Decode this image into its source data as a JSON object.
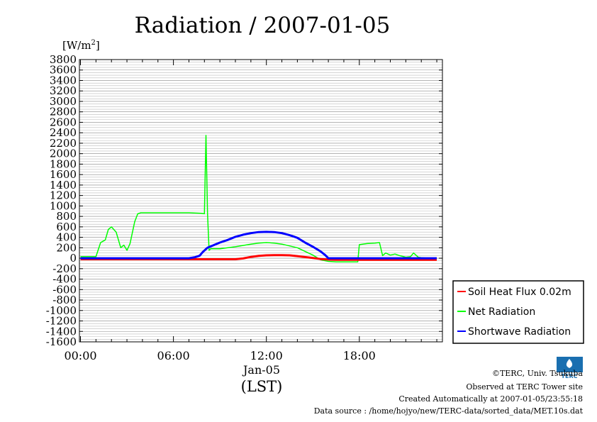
{
  "chart_data": {
    "type": "line",
    "title": "Radiation / 2007-01-05",
    "unit": "[W/m2]",
    "ylim": [
      -1600,
      3800
    ],
    "yticks": [
      3800,
      3600,
      3400,
      3200,
      3000,
      2800,
      2600,
      2400,
      2200,
      2000,
      1800,
      1600,
      1400,
      1200,
      1000,
      800,
      600,
      400,
      200,
      0,
      -200,
      -400,
      -600,
      -800,
      -1000,
      -1200,
      -1400,
      -1600
    ],
    "xlim": [
      0,
      23
    ],
    "x_tick_labels": [
      "00:00",
      "06:00",
      "12:00",
      "18:00"
    ],
    "date_label": "Jan-05",
    "xlabel": "(LST)",
    "grid": true,
    "legend_position": "right",
    "series": [
      {
        "name": "Soil Heat Flux 0.02m",
        "color": "#ff0000",
        "x": [
          0,
          2,
          4,
          6,
          8,
          10,
          10.5,
          11,
          11.5,
          12,
          12.5,
          13,
          13.5,
          14,
          15,
          15.5,
          16,
          16.5,
          17,
          18,
          20,
          22,
          23
        ],
        "y": [
          -20,
          -20,
          -20,
          -20,
          -20,
          -20,
          -5,
          25,
          45,
          55,
          60,
          60,
          55,
          40,
          5,
          -15,
          -25,
          -30,
          -30,
          -30,
          -30,
          -30,
          -30
        ]
      },
      {
        "name": "Net Radiation",
        "color": "#00ff00",
        "x": [
          0,
          1,
          1.3,
          1.6,
          1.8,
          2.0,
          2.3,
          2.6,
          2.8,
          3.0,
          3.2,
          3.5,
          3.7,
          3.9,
          4.2,
          5,
          6,
          7,
          7.8,
          8.0,
          8.1,
          8.15,
          8.2,
          8.3,
          8.4,
          8.6,
          9,
          10,
          11,
          11.5,
          12,
          12.5,
          13,
          14,
          15,
          15.5,
          16,
          16.5,
          17,
          17.5,
          17.9,
          18,
          18.5,
          19,
          19.3,
          19.5,
          19.7,
          20,
          20.3,
          20.6,
          21,
          21.3,
          21.5,
          21.8,
          22,
          22.3,
          22.5,
          22.7,
          23
        ],
        "y": [
          30,
          30,
          300,
          350,
          550,
          600,
          500,
          200,
          250,
          150,
          280,
          700,
          850,
          870,
          870,
          870,
          870,
          870,
          860,
          850,
          2350,
          1600,
          850,
          150,
          180,
          180,
          180,
          220,
          270,
          290,
          300,
          290,
          270,
          200,
          60,
          -30,
          -60,
          -70,
          -70,
          -70,
          -70,
          260,
          280,
          290,
          300,
          50,
          100,
          60,
          80,
          50,
          20,
          30,
          100,
          20,
          10,
          5,
          0,
          5,
          0
        ]
      },
      {
        "name": "Shortwave Radiation",
        "color": "#0000ff",
        "x": [
          0,
          2,
          4,
          6,
          7,
          7.4,
          7.7,
          7.9,
          8.2,
          8.6,
          9,
          9.5,
          10,
          10.5,
          11,
          11.5,
          12,
          12.5,
          13,
          13.5,
          14,
          14.5,
          15,
          15.5,
          15.8,
          16,
          18,
          20,
          23
        ],
        "y": [
          0,
          0,
          0,
          0,
          0,
          20,
          50,
          120,
          200,
          250,
          300,
          350,
          410,
          450,
          480,
          500,
          505,
          500,
          480,
          440,
          390,
          300,
          220,
          130,
          60,
          0,
          0,
          0,
          0
        ]
      }
    ]
  },
  "credits": {
    "line1": "©TERC, Univ. Tsukuba",
    "line2": "Observed at TERC Tower site",
    "line3": "Created Automatically at 2007-01-05/23:55:18",
    "line4": "Data source : /home/hojyo/new/TERC-data/sorted_data/MET.10s.dat",
    "logo_text": "TERC"
  }
}
